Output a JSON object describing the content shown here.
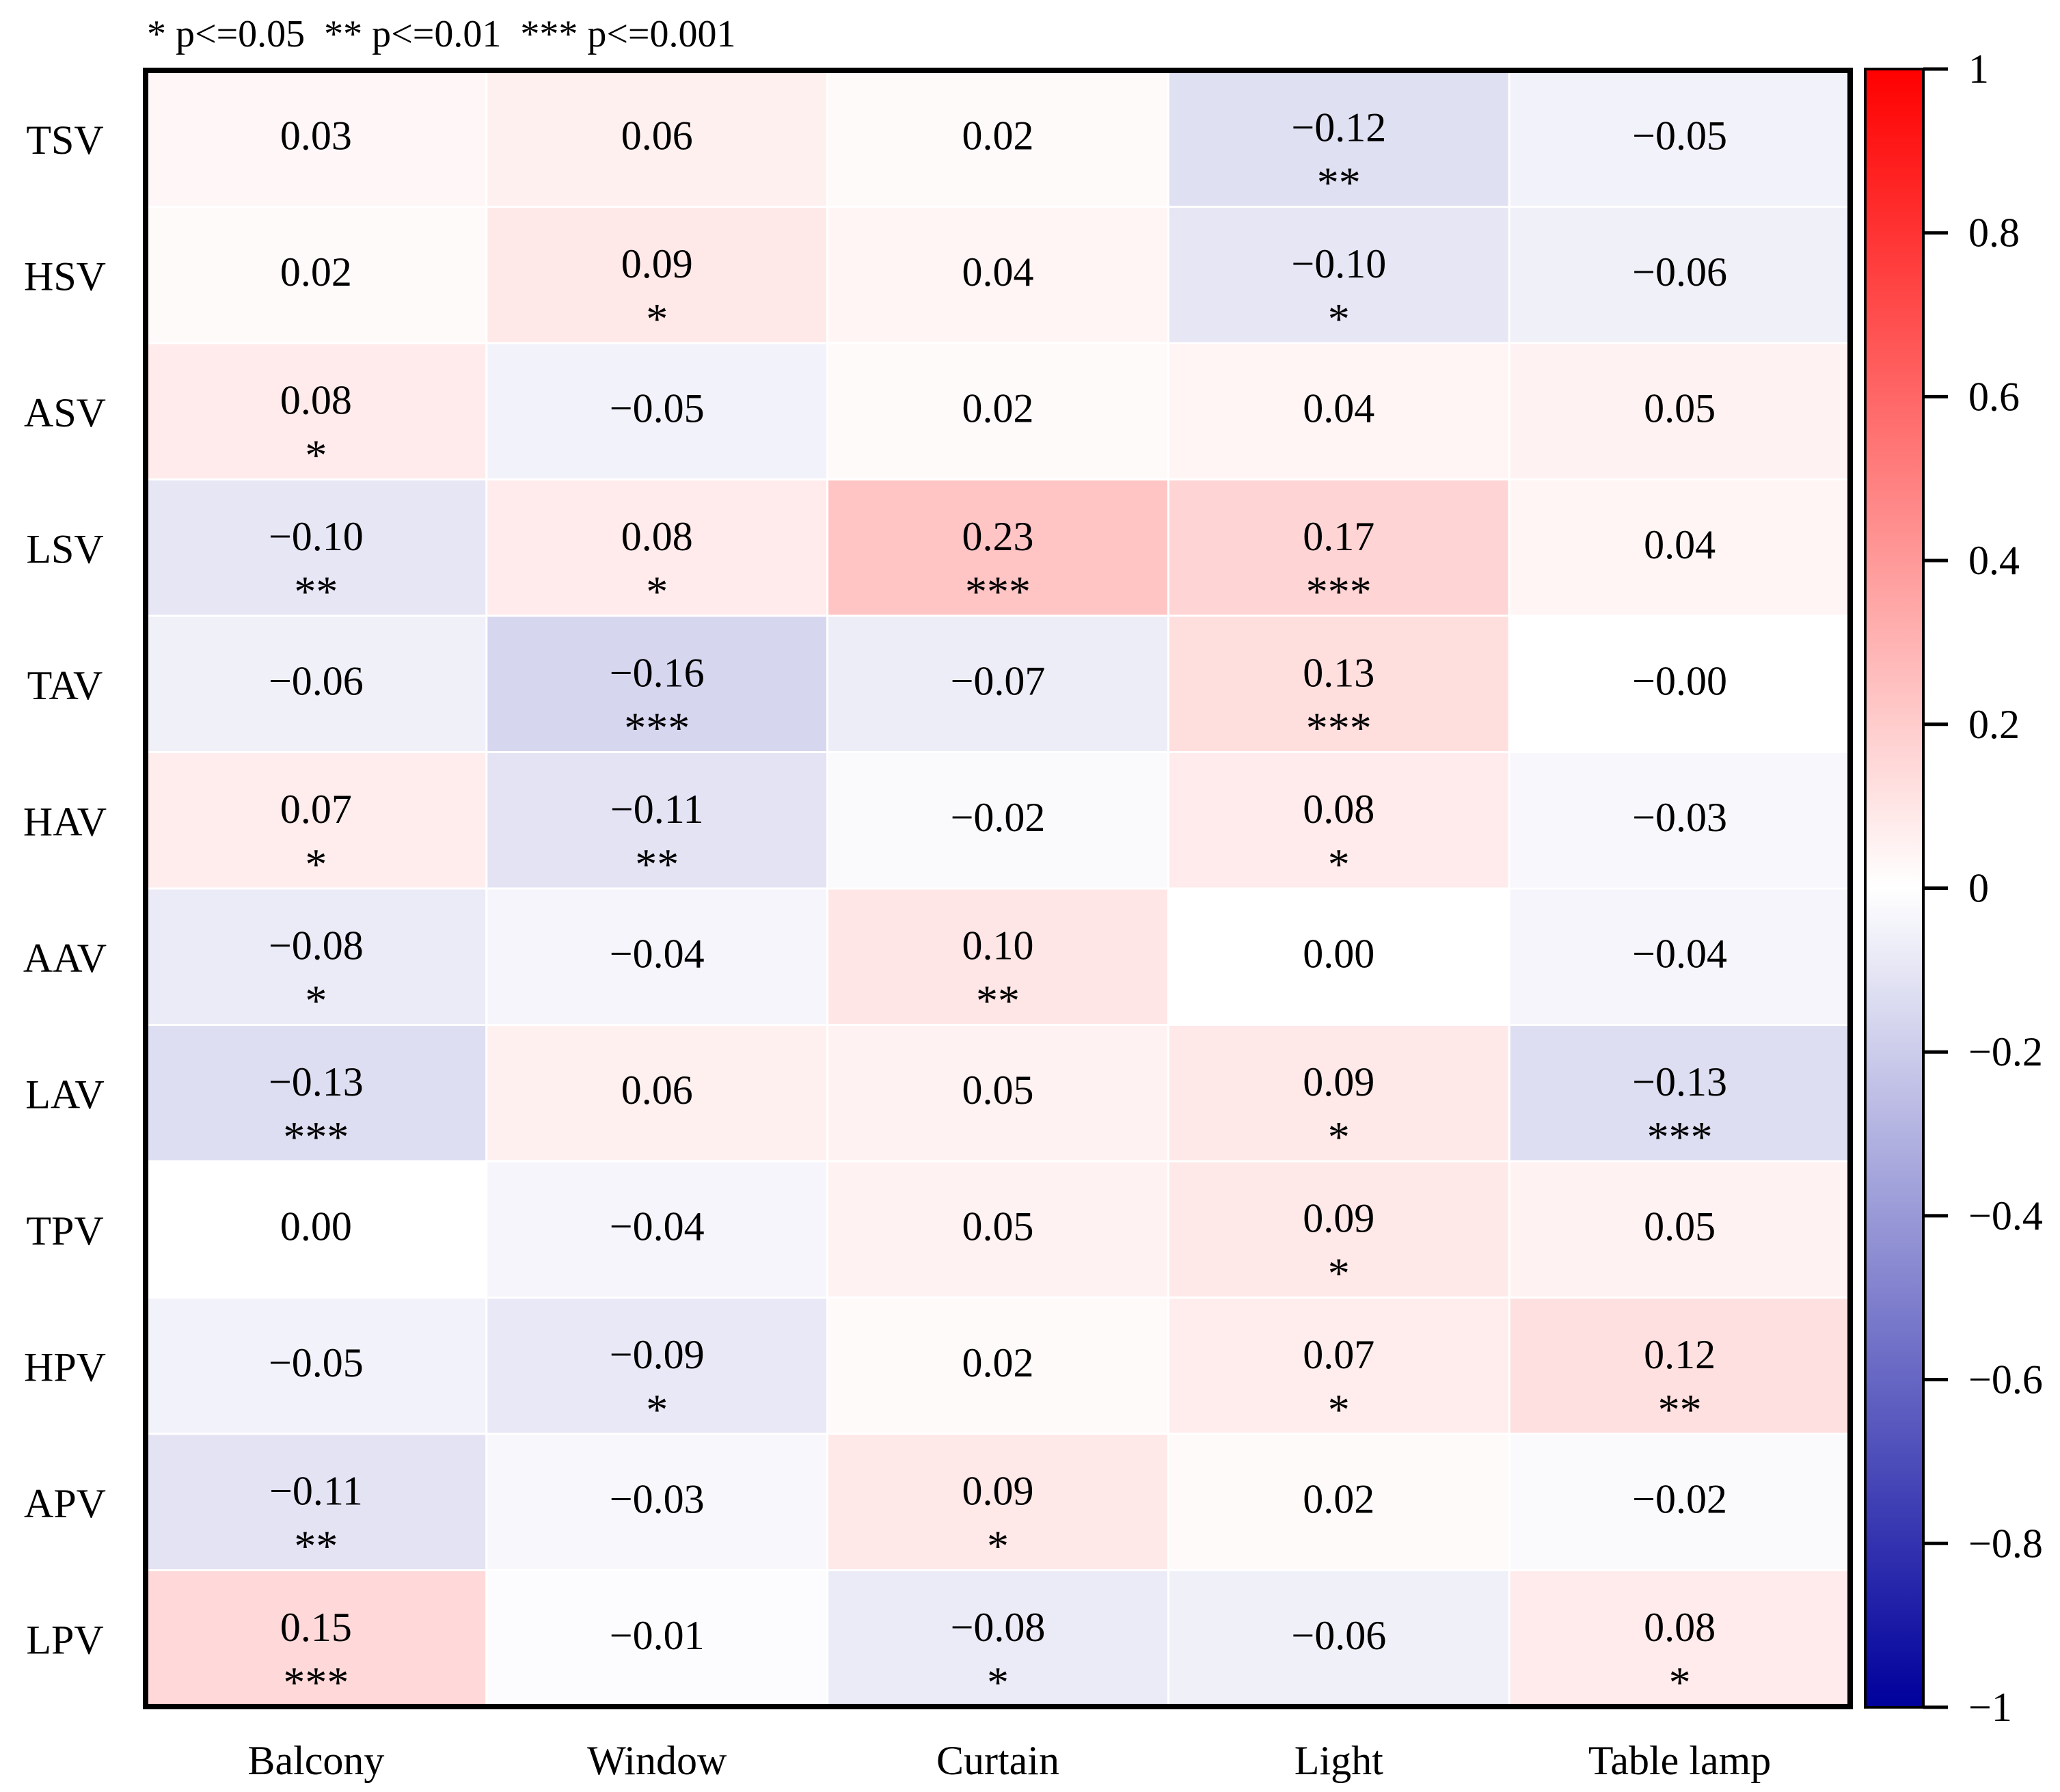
{
  "chart_data": {
    "type": "heatmap",
    "legend_note": "* p<=0.05  ** p<=0.01  *** p<=0.001",
    "rows": [
      "TSV",
      "HSV",
      "ASV",
      "LSV",
      "TAV",
      "HAV",
      "AAV",
      "LAV",
      "TPV",
      "HPV",
      "APV",
      "LPV"
    ],
    "columns": [
      "Balcony",
      "Window",
      "Curtain",
      "Light",
      "Table lamp"
    ],
    "values": [
      [
        0.03,
        0.06,
        0.02,
        -0.12,
        -0.05
      ],
      [
        0.02,
        0.09,
        0.04,
        -0.1,
        -0.06
      ],
      [
        0.08,
        -0.05,
        0.02,
        0.04,
        0.05
      ],
      [
        -0.1,
        0.08,
        0.23,
        0.17,
        0.04
      ],
      [
        -0.06,
        -0.16,
        -0.07,
        0.13,
        -0.0
      ],
      [
        0.07,
        -0.11,
        -0.02,
        0.08,
        -0.03
      ],
      [
        -0.08,
        -0.04,
        0.1,
        0.0,
        -0.04
      ],
      [
        -0.13,
        0.06,
        0.05,
        0.09,
        -0.13
      ],
      [
        0.0,
        -0.04,
        0.05,
        0.09,
        0.05
      ],
      [
        -0.05,
        -0.09,
        0.02,
        0.07,
        0.12
      ],
      [
        -0.11,
        -0.03,
        0.09,
        0.02,
        -0.02
      ],
      [
        0.15,
        -0.01,
        -0.08,
        -0.06,
        0.08
      ]
    ],
    "labels": [
      [
        "0.03",
        "0.06",
        "0.02",
        "-0.12",
        "-0.05"
      ],
      [
        "0.02",
        "0.09",
        "0.04",
        "-0.10",
        "-0.06"
      ],
      [
        "0.08",
        "-0.05",
        "0.02",
        "0.04",
        "0.05"
      ],
      [
        "-0.10",
        "0.08",
        "0.23",
        "0.17",
        "0.04"
      ],
      [
        "-0.06",
        "-0.16",
        "-0.07",
        "0.13",
        "-0.00"
      ],
      [
        "0.07",
        "-0.11",
        "-0.02",
        "0.08",
        "-0.03"
      ],
      [
        "-0.08",
        "-0.04",
        "0.10",
        "0.00",
        "-0.04"
      ],
      [
        "-0.13",
        "0.06",
        "0.05",
        "0.09",
        "-0.13"
      ],
      [
        "0.00",
        "-0.04",
        "0.05",
        "0.09",
        "0.05"
      ],
      [
        "-0.05",
        "-0.09",
        "0.02",
        "0.07",
        "0.12"
      ],
      [
        "-0.11",
        "-0.03",
        "0.09",
        "0.02",
        "-0.02"
      ],
      [
        "0.15",
        "-0.01",
        "-0.08",
        "-0.06",
        "0.08"
      ]
    ],
    "significance": [
      [
        "",
        "",
        "",
        "**",
        ""
      ],
      [
        "",
        "*",
        "",
        "*",
        ""
      ],
      [
        "*",
        "",
        "",
        "",
        ""
      ],
      [
        "**",
        "*",
        "***",
        "***",
        ""
      ],
      [
        "",
        "***",
        "",
        "***",
        ""
      ],
      [
        "*",
        "**",
        "",
        "*",
        ""
      ],
      [
        "*",
        "",
        "**",
        "",
        ""
      ],
      [
        "***",
        "",
        "",
        "*",
        "***"
      ],
      [
        "",
        "",
        "",
        "*",
        ""
      ],
      [
        "",
        "*",
        "",
        "*",
        "**"
      ],
      [
        "**",
        "",
        "*",
        "",
        ""
      ],
      [
        "***",
        "",
        "*",
        "",
        "*"
      ]
    ],
    "colorbar": {
      "range": [
        -1,
        1
      ],
      "ticks": [
        1,
        0.8,
        0.6,
        0.4,
        0.2,
        0,
        -0.2,
        -0.4,
        -0.6,
        -0.8,
        -1
      ],
      "tick_labels": [
        "1",
        "0.8",
        "0.6",
        "0.4",
        "0.2",
        "0",
        "−0.2",
        "−0.4",
        "−0.6",
        "−0.8",
        "−1"
      ],
      "color_min": "#00009C",
      "color_mid": "#FFFFFF",
      "color_max": "#FF0000"
    }
  }
}
